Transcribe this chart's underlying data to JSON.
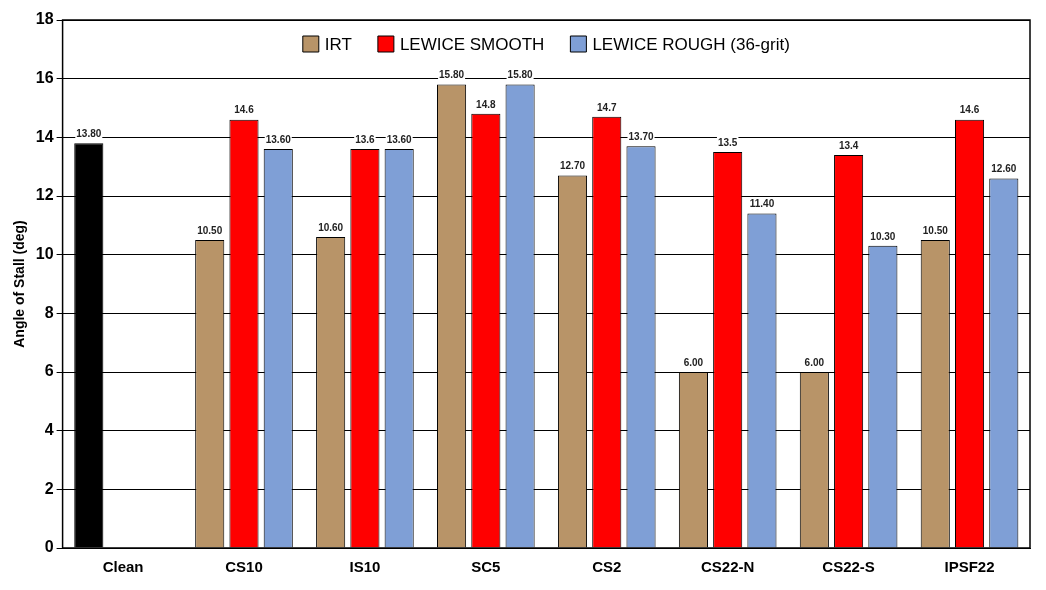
{
  "chart_data": {
    "type": "bar",
    "ylabel": "Angle of Stall (deg)",
    "categories": [
      "Clean",
      "CS10",
      "IS10",
      "SC5",
      "CS2",
      "CS22-N",
      "CS22-S",
      "IPSF22"
    ],
    "series": [
      {
        "name": "IRT",
        "color": "#b89468",
        "colors": [
          "#000000",
          "#b89468",
          "#b89468",
          "#b89468",
          "#b89468",
          "#b89468",
          "#b89468",
          "#b89468"
        ],
        "values": [
          13.8,
          10.5,
          10.6,
          15.8,
          12.7,
          6.0,
          6.0,
          10.5
        ],
        "value_labels": [
          "13.80",
          "10.50",
          "10.60",
          "15.80",
          "12.70",
          "6.00",
          "6.00",
          "10.50"
        ]
      },
      {
        "name": "LEWICE SMOOTH",
        "color": "#ff0000",
        "values": [
          null,
          14.6,
          13.6,
          14.8,
          14.7,
          13.5,
          13.4,
          14.6
        ],
        "value_labels": [
          null,
          "14.6",
          "13.6",
          "14.8",
          "14.7",
          "13.5",
          "13.4",
          "14.6"
        ]
      },
      {
        "name": "LEWICE ROUGH (36-grit)",
        "color": "#7f9fd6",
        "values": [
          null,
          13.6,
          13.6,
          15.8,
          13.7,
          11.4,
          10.3,
          12.6
        ],
        "value_labels": [
          null,
          "13.60",
          "13.60",
          "15.80",
          "13.70",
          "11.40",
          "10.30",
          "12.60"
        ]
      }
    ],
    "ylim": [
      0,
      18
    ],
    "yticks": [
      0,
      2,
      4,
      6,
      8,
      10,
      12,
      14,
      16,
      18
    ],
    "grid": "y",
    "legend": "top"
  }
}
